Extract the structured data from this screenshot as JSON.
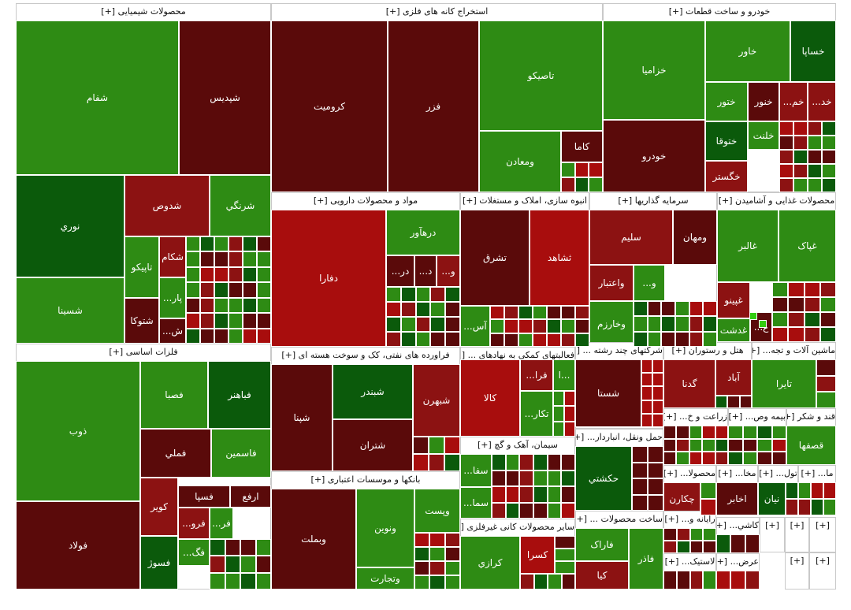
{
  "colors": {
    "g": "#2e8b14",
    "d": "#0b5a0b",
    "m": "#5a0a0a",
    "r": "#8c1212",
    "b": "#a80d0d",
    "l": "#33cc11"
  },
  "sectors": [
    {
      "title": "محصولات شیمیایی [+]",
      "tiles": [
        {
          "label": "شفام",
          "color": "g"
        },
        {
          "label": "شپدیس",
          "color": "m"
        },
        {
          "label": "نوري",
          "color": "d"
        },
        {
          "label": "شدوص",
          "color": "r"
        },
        {
          "label": "شرنگي",
          "color": "g"
        },
        {
          "label": "شسينا",
          "color": "g"
        },
        {
          "label": "تاپیکو",
          "color": "g"
        },
        {
          "label": "شکام",
          "color": "r"
        },
        {
          "label": "پار...",
          "color": "g"
        },
        {
          "label": "شتوکا",
          "color": "m"
        },
        {
          "label": "ش...",
          "color": "m"
        }
      ]
    },
    {
      "title": "استخراج کانه های فلزی [+]",
      "tiles": [
        {
          "label": "کرومیت",
          "color": "m"
        },
        {
          "label": "فزر",
          "color": "m"
        },
        {
          "label": "تاصیکو",
          "color": "g"
        },
        {
          "label": "ومعادن",
          "color": "g"
        },
        {
          "label": "کاما",
          "color": "m"
        }
      ]
    },
    {
      "title": "خودرو و ساخت قطعات [+]",
      "tiles": [
        {
          "label": "خزامیا",
          "color": "g"
        },
        {
          "label": "خاور",
          "color": "g"
        },
        {
          "label": "خساپا",
          "color": "d"
        },
        {
          "label": "ختور",
          "color": "g"
        },
        {
          "label": "خنور",
          "color": "m"
        },
        {
          "label": "خم...",
          "color": "r"
        },
        {
          "label": "خد...",
          "color": "r"
        },
        {
          "label": "ختوقا",
          "color": "d"
        },
        {
          "label": "خلنت",
          "color": "g"
        },
        {
          "label": "خودرو",
          "color": "m"
        },
        {
          "label": "خگستر",
          "color": "r"
        }
      ]
    },
    {
      "title": "مواد و محصولات دارویی [+]",
      "tiles": [
        {
          "label": "دفارا",
          "color": "b"
        },
        {
          "label": "درهآور",
          "color": "g"
        },
        {
          "label": "در...",
          "color": "m"
        },
        {
          "label": "د...",
          "color": "m"
        },
        {
          "label": "و...",
          "color": "r"
        }
      ]
    },
    {
      "title": "انبوه سازی، املاک و مستغلات [+]",
      "tiles": [
        {
          "label": "تشرق",
          "color": "m"
        },
        {
          "label": "ثشاهد",
          "color": "b"
        },
        {
          "label": "آس...",
          "color": "g"
        }
      ]
    },
    {
      "title": "سرمایه گذاریها [+]",
      "tiles": [
        {
          "label": "سليم",
          "color": "r"
        },
        {
          "label": "ومهان",
          "color": "m"
        },
        {
          "label": "واعتبار",
          "color": "r"
        },
        {
          "label": "و...",
          "color": "g"
        },
        {
          "label": "وخارزم",
          "color": "g"
        }
      ]
    },
    {
      "title": "محصولات غذایی و آشامیدن [+]",
      "tiles": [
        {
          "label": "غالبر",
          "color": "g"
        },
        {
          "label": "غپاک",
          "color": "g"
        },
        {
          "label": "غپينو",
          "color": "r"
        },
        {
          "label": "غدشت",
          "color": "g"
        },
        {
          "label": "غ...",
          "color": "m"
        }
      ]
    },
    {
      "title": "فلزات اساسی [+]",
      "tiles": [
        {
          "label": "ذوب",
          "color": "g"
        },
        {
          "label": "فصبا",
          "color": "g"
        },
        {
          "label": "فباهنر",
          "color": "d"
        },
        {
          "label": "فملي",
          "color": "m"
        },
        {
          "label": "فاسمين",
          "color": "g"
        },
        {
          "label": "فولاد",
          "color": "m"
        },
        {
          "label": "کویر",
          "color": "r"
        },
        {
          "label": "فسپا",
          "color": "m"
        },
        {
          "label": "ارفع",
          "color": "m"
        },
        {
          "label": "فرو...",
          "color": "r"
        },
        {
          "label": "فر...",
          "color": "g"
        },
        {
          "label": "فسوژ",
          "color": "d"
        },
        {
          "label": "فگ...",
          "color": "g"
        }
      ]
    },
    {
      "title": "فراورده های نفتی، کک و سوخت هسته ای [+]",
      "tiles": [
        {
          "label": "شپنا",
          "color": "m"
        },
        {
          "label": "شبندر",
          "color": "d"
        },
        {
          "label": "شبهرن",
          "color": "r"
        },
        {
          "label": "شتران",
          "color": "m"
        }
      ]
    },
    {
      "title": "فعالیتهای کمکی به نهادهای ... [+]",
      "tiles": [
        {
          "label": "کالا",
          "color": "b"
        },
        {
          "label": "فرا...",
          "color": "r"
        },
        {
          "label": "...ا",
          "color": "g"
        },
        {
          "label": "تکار...",
          "color": "g"
        }
      ]
    },
    {
      "title": "شرکتهای چند رشته ... [+]",
      "tiles": [
        {
          "label": "شستا",
          "color": "m"
        }
      ]
    },
    {
      "title": "هتل و رستوران [+]",
      "tiles": [
        {
          "label": "گدنا",
          "color": "r"
        },
        {
          "label": "آباد",
          "color": "r"
        }
      ]
    },
    {
      "title": "ماشین آلات و تجه... [+]",
      "tiles": [
        {
          "label": "تایرا",
          "color": "g"
        }
      ]
    },
    {
      "title": "زراعت و خ... [+]",
      "tiles": []
    },
    {
      "title": "بیمه وص... [+]",
      "tiles": []
    },
    {
      "title": "قند و شکر [+]",
      "tiles": [
        {
          "label": "قصفها",
          "color": "g"
        }
      ]
    },
    {
      "title": "سیمان، آهک و گچ [+]",
      "tiles": [
        {
          "label": "سفا...",
          "color": "g"
        },
        {
          "label": "سما...",
          "color": "g"
        }
      ]
    },
    {
      "title": "حمل ونقل، انباردار... [+]",
      "tiles": [
        {
          "label": "حکشتي",
          "color": "d"
        }
      ]
    },
    {
      "title": "محصولا... [+]",
      "tiles": [
        {
          "label": "چکارن",
          "color": "r"
        }
      ]
    },
    {
      "title": "مخا... [+]",
      "tiles": [
        {
          "label": "اخابر",
          "color": "m"
        }
      ]
    },
    {
      "title": "تول... [+]",
      "tiles": [
        {
          "label": "نيان",
          "color": "d"
        }
      ]
    },
    {
      "title": "ما... [+]",
      "tiles": []
    },
    {
      "title": "بانکها و موسسات اعتباری [+]",
      "tiles": [
        {
          "label": "وبملت",
          "color": "m"
        },
        {
          "label": "وپست",
          "color": "g"
        },
        {
          "label": "ونوین",
          "color": "g"
        },
        {
          "label": "وتجارت",
          "color": "g"
        }
      ]
    },
    {
      "title": "سایر محصولات کانی غیرفلزی [+]",
      "tiles": [
        {
          "label": "کرازي",
          "color": "g"
        },
        {
          "label": "کسرا",
          "color": "b"
        }
      ]
    },
    {
      "title": "ساخت محصولات ... [+]",
      "tiles": [
        {
          "label": "فاراک",
          "color": "g"
        },
        {
          "label": "فاذر",
          "color": "g"
        },
        {
          "label": "کیا",
          "color": "r"
        }
      ]
    },
    {
      "title": "رایانه و... [+]",
      "tiles": []
    },
    {
      "title": "کاشي... [+]",
      "tiles": []
    },
    {
      "title": "لاستیک... [+]",
      "tiles": []
    },
    {
      "title": "عرض... [+]",
      "tiles": []
    },
    {
      "title": "[+]",
      "tiles": []
    },
    {
      "title": "[+]",
      "tiles": []
    },
    {
      "title": "[+]",
      "tiles": []
    },
    {
      "title": "[+]",
      "tiles": []
    },
    {
      "title": "[+]",
      "tiles": []
    }
  ]
}
